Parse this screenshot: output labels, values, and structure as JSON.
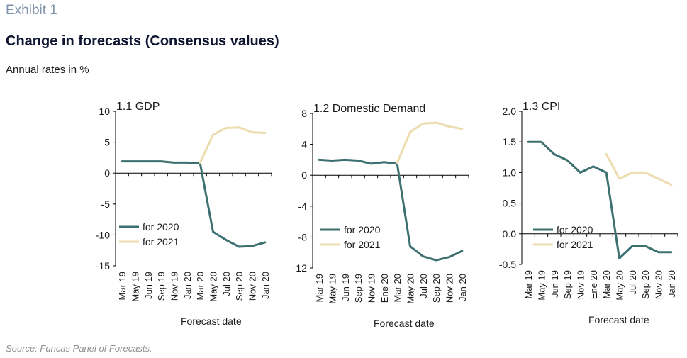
{
  "header": {
    "exhibit": "Exhibit 1",
    "title": "Change in forecasts (Consensus values)",
    "subtitle": "Annual rates in %"
  },
  "footer": {
    "source": "Source: Funcas Panel of Forecasts."
  },
  "colors": {
    "for_2020": "#3d7071",
    "for_2021": "#ecdcaf",
    "axis": "#000000"
  },
  "chart_data": [
    {
      "type": "line",
      "title": "1.1 GDP",
      "xlabel": "Forecast date",
      "ylabel": "",
      "ylim": [
        -15,
        10
      ],
      "yticks": [
        10,
        5,
        0,
        -5,
        -10,
        -15
      ],
      "ytick_labels": [
        "10",
        "5",
        "0",
        "-5",
        "-10",
        "-15"
      ],
      "categories": [
        "Mar 19",
        "May 19",
        "Jun 19",
        "Sep 19",
        "Nov 19",
        "Jan 20",
        "Mar 20",
        "May 20",
        "Jul 20",
        "Sep 20",
        "Nov 20",
        "Jan 20"
      ],
      "legend_position": "bottom-left",
      "series": [
        {
          "name": "for 2020",
          "color": "#3d7071",
          "values": [
            1.9,
            1.9,
            1.9,
            1.9,
            1.7,
            1.7,
            1.6,
            -9.5,
            -10.8,
            -11.9,
            -11.8,
            -11.2
          ]
        },
        {
          "name": "for 2021",
          "color": "#ecdcaf",
          "values": [
            null,
            null,
            null,
            null,
            null,
            null,
            1.7,
            6.2,
            7.3,
            7.4,
            6.6,
            6.5
          ]
        }
      ]
    },
    {
      "type": "line",
      "title": "1.2 Domestic Demand",
      "xlabel": "Forecast date",
      "ylabel": "",
      "ylim": [
        -12,
        8
      ],
      "yticks": [
        8,
        4,
        0,
        -4,
        -8,
        -12
      ],
      "ytick_labels": [
        "8",
        "4",
        "0",
        "-4",
        "-8",
        "-12"
      ],
      "categories": [
        "Mar 19",
        "May 19",
        "Jun 19",
        "Sep 19",
        "Nov 19",
        "Ene 20",
        "Mar 20",
        "May 20",
        "Jul 20",
        "Sep 20",
        "Nov 20",
        "Jan 20"
      ],
      "legend_position": "bottom-left",
      "series": [
        {
          "name": "for 2020",
          "color": "#3d7071",
          "values": [
            2.0,
            1.9,
            2.0,
            1.9,
            1.5,
            1.7,
            1.5,
            -9.2,
            -10.5,
            -11.0,
            -10.6,
            -9.8
          ]
        },
        {
          "name": "for 2021",
          "color": "#ecdcaf",
          "values": [
            null,
            null,
            null,
            null,
            null,
            null,
            1.6,
            5.6,
            6.7,
            6.8,
            6.3,
            6.0
          ]
        }
      ]
    },
    {
      "type": "line",
      "title": "1.3 CPI",
      "xlabel": "Forecast date",
      "ylabel": "",
      "ylim": [
        -0.5,
        2.0
      ],
      "yticks": [
        2.0,
        1.5,
        1.0,
        0.5,
        0.0,
        -0.5
      ],
      "ytick_labels": [
        "2.0",
        "1.5",
        "1.0",
        "0.5",
        "0.0",
        "-0.5"
      ],
      "categories": [
        "Mar 19",
        "May 19",
        "Jun 19",
        "Sep 19",
        "Nov 19",
        "Ene 20",
        "Mar 20",
        "May 20",
        "Jul 20",
        "Sep 20",
        "Nov 20",
        "Jan 20"
      ],
      "legend_position": "bottom-left",
      "series": [
        {
          "name": "for 2020",
          "color": "#3d7071",
          "values": [
            1.5,
            1.5,
            1.3,
            1.2,
            1.0,
            1.1,
            1.0,
            -0.4,
            -0.2,
            -0.2,
            -0.3,
            -0.3
          ]
        },
        {
          "name": "for 2021",
          "color": "#ecdcaf",
          "values": [
            null,
            null,
            null,
            null,
            null,
            null,
            1.3,
            0.9,
            1.0,
            1.0,
            0.9,
            0.8
          ]
        }
      ]
    }
  ]
}
